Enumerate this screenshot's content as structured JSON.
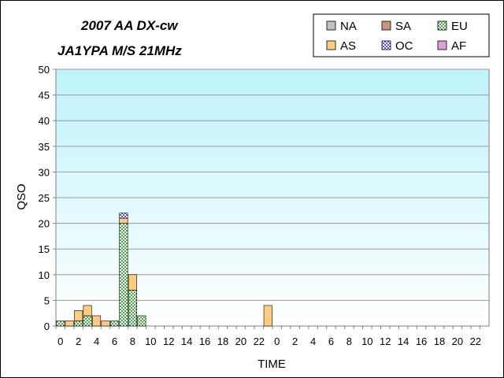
{
  "chart_data": {
    "type": "bar",
    "stacked": true,
    "title_lines": [
      "2007 AA DX-cw",
      "JA1YPA  M/S  21MHz"
    ],
    "xlabel": "TIME",
    "ylabel": "QSO",
    "ylim": [
      0,
      50
    ],
    "yticks": [
      0,
      5,
      10,
      15,
      20,
      25,
      30,
      35,
      40,
      45,
      50
    ],
    "grid": true,
    "legend_position": "top-right",
    "categories": [
      "0",
      "1",
      "2",
      "3",
      "4",
      "5",
      "6",
      "7",
      "8",
      "9",
      "10",
      "11",
      "12",
      "13",
      "14",
      "15",
      "16",
      "17",
      "18",
      "19",
      "20",
      "21",
      "22",
      "23",
      "0",
      "1",
      "2",
      "3",
      "4",
      "5",
      "6",
      "7",
      "8",
      "9",
      "10",
      "11",
      "12",
      "13",
      "14",
      "15",
      "16",
      "17",
      "18",
      "19",
      "20",
      "21",
      "22",
      "23"
    ],
    "xtick_labels": [
      "0",
      "",
      "2",
      "",
      "4",
      "",
      "6",
      "",
      "8",
      "",
      "10",
      "",
      "12",
      "",
      "14",
      "",
      "16",
      "",
      "18",
      "",
      "20",
      "",
      "22",
      "",
      "0",
      "",
      "2",
      "",
      "4",
      "",
      "6",
      "",
      "8",
      "",
      "10",
      "",
      "12",
      "",
      "14",
      "",
      "16",
      "",
      "18",
      "",
      "20",
      "",
      "22",
      ""
    ],
    "series": [
      {
        "name": "NA",
        "color": "#c0c0c0",
        "pattern": "solid",
        "values": [
          0,
          0,
          0,
          0,
          0,
          0,
          0,
          0,
          0,
          0,
          0,
          0,
          0,
          0,
          0,
          0,
          0,
          0,
          0,
          0,
          0,
          0,
          0,
          0,
          0,
          0,
          0,
          0,
          0,
          0,
          0,
          0,
          0,
          0,
          0,
          0,
          0,
          0,
          0,
          0,
          0,
          0,
          0,
          0,
          0,
          0,
          0,
          0
        ]
      },
      {
        "name": "SA",
        "color": "#c8967a",
        "pattern": "solid",
        "values": [
          0,
          0,
          0,
          0,
          0,
          0,
          0,
          0,
          0,
          0,
          0,
          0,
          0,
          0,
          0,
          0,
          0,
          0,
          0,
          0,
          0,
          0,
          0,
          0,
          0,
          0,
          0,
          0,
          0,
          0,
          0,
          0,
          0,
          0,
          0,
          0,
          0,
          0,
          0,
          0,
          0,
          0,
          0,
          0,
          0,
          0,
          0,
          0
        ]
      },
      {
        "name": "EU",
        "color": "#66cc66",
        "pattern": "check",
        "values": [
          1,
          0,
          1,
          2,
          0,
          0,
          1,
          20,
          7,
          2,
          0,
          0,
          0,
          0,
          0,
          0,
          0,
          0,
          0,
          0,
          0,
          0,
          0,
          0,
          0,
          0,
          0,
          0,
          0,
          0,
          0,
          0,
          0,
          0,
          0,
          0,
          0,
          0,
          0,
          0,
          0,
          0,
          0,
          0,
          0,
          0,
          0,
          0
        ]
      },
      {
        "name": "AS",
        "color": "#ffcc80",
        "pattern": "solid",
        "values": [
          0,
          1,
          2,
          2,
          2,
          1,
          0,
          1,
          3,
          0,
          0,
          0,
          0,
          0,
          0,
          0,
          0,
          0,
          0,
          0,
          0,
          0,
          0,
          4,
          0,
          0,
          0,
          0,
          0,
          0,
          0,
          0,
          0,
          0,
          0,
          0,
          0,
          0,
          0,
          0,
          0,
          0,
          0,
          0,
          0,
          0,
          0,
          0
        ]
      },
      {
        "name": "OC",
        "color": "#8888ee",
        "pattern": "check",
        "values": [
          0,
          0,
          0,
          0,
          0,
          0,
          0,
          1,
          0,
          0,
          0,
          0,
          0,
          0,
          0,
          0,
          0,
          0,
          0,
          0,
          0,
          0,
          0,
          0,
          0,
          0,
          0,
          0,
          0,
          0,
          0,
          0,
          0,
          0,
          0,
          0,
          0,
          0,
          0,
          0,
          0,
          0,
          0,
          0,
          0,
          0,
          0,
          0
        ]
      },
      {
        "name": "AF",
        "color": "#dda0dd",
        "pattern": "solid",
        "values": [
          0,
          0,
          0,
          0,
          0,
          0,
          0,
          0,
          0,
          0,
          0,
          0,
          0,
          0,
          0,
          0,
          0,
          0,
          0,
          0,
          0,
          0,
          0,
          0,
          0,
          0,
          0,
          0,
          0,
          0,
          0,
          0,
          0,
          0,
          0,
          0,
          0,
          0,
          0,
          0,
          0,
          0,
          0,
          0,
          0,
          0,
          0,
          0
        ]
      }
    ],
    "legend_order": [
      "NA",
      "SA",
      "EU",
      "AS",
      "OC",
      "AF"
    ]
  }
}
